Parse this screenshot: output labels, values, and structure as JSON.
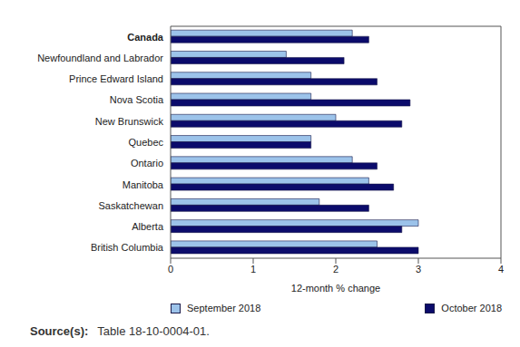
{
  "chart_data": {
    "type": "bar",
    "orientation": "horizontal",
    "categories": [
      "Canada",
      "Newfoundland and Labrador",
      "Prince Edward Island",
      "Nova Scotia",
      "New Brunswick",
      "Quebec",
      "Ontario",
      "Manitoba",
      "Saskatchewan",
      "Alberta",
      "British Columbia"
    ],
    "series": [
      {
        "name": "September 2018",
        "color": "#9cc3ea",
        "values": [
          2.2,
          1.4,
          1.7,
          1.7,
          2.0,
          1.7,
          2.2,
          2.4,
          1.8,
          3.0,
          2.5
        ]
      },
      {
        "name": "October 2018",
        "color": "#0b0b6b",
        "values": [
          2.4,
          2.1,
          2.5,
          2.9,
          2.8,
          1.7,
          2.5,
          2.7,
          2.4,
          2.8,
          3.0
        ]
      }
    ],
    "x_label": "12-month % change",
    "xlim": [
      0,
      4
    ],
    "xticks": [
      0,
      1,
      2,
      3,
      4
    ],
    "grid": false,
    "legend": "bottom",
    "source": {
      "label": "Source(s):",
      "text": "Table 18-10-0004-01."
    }
  }
}
